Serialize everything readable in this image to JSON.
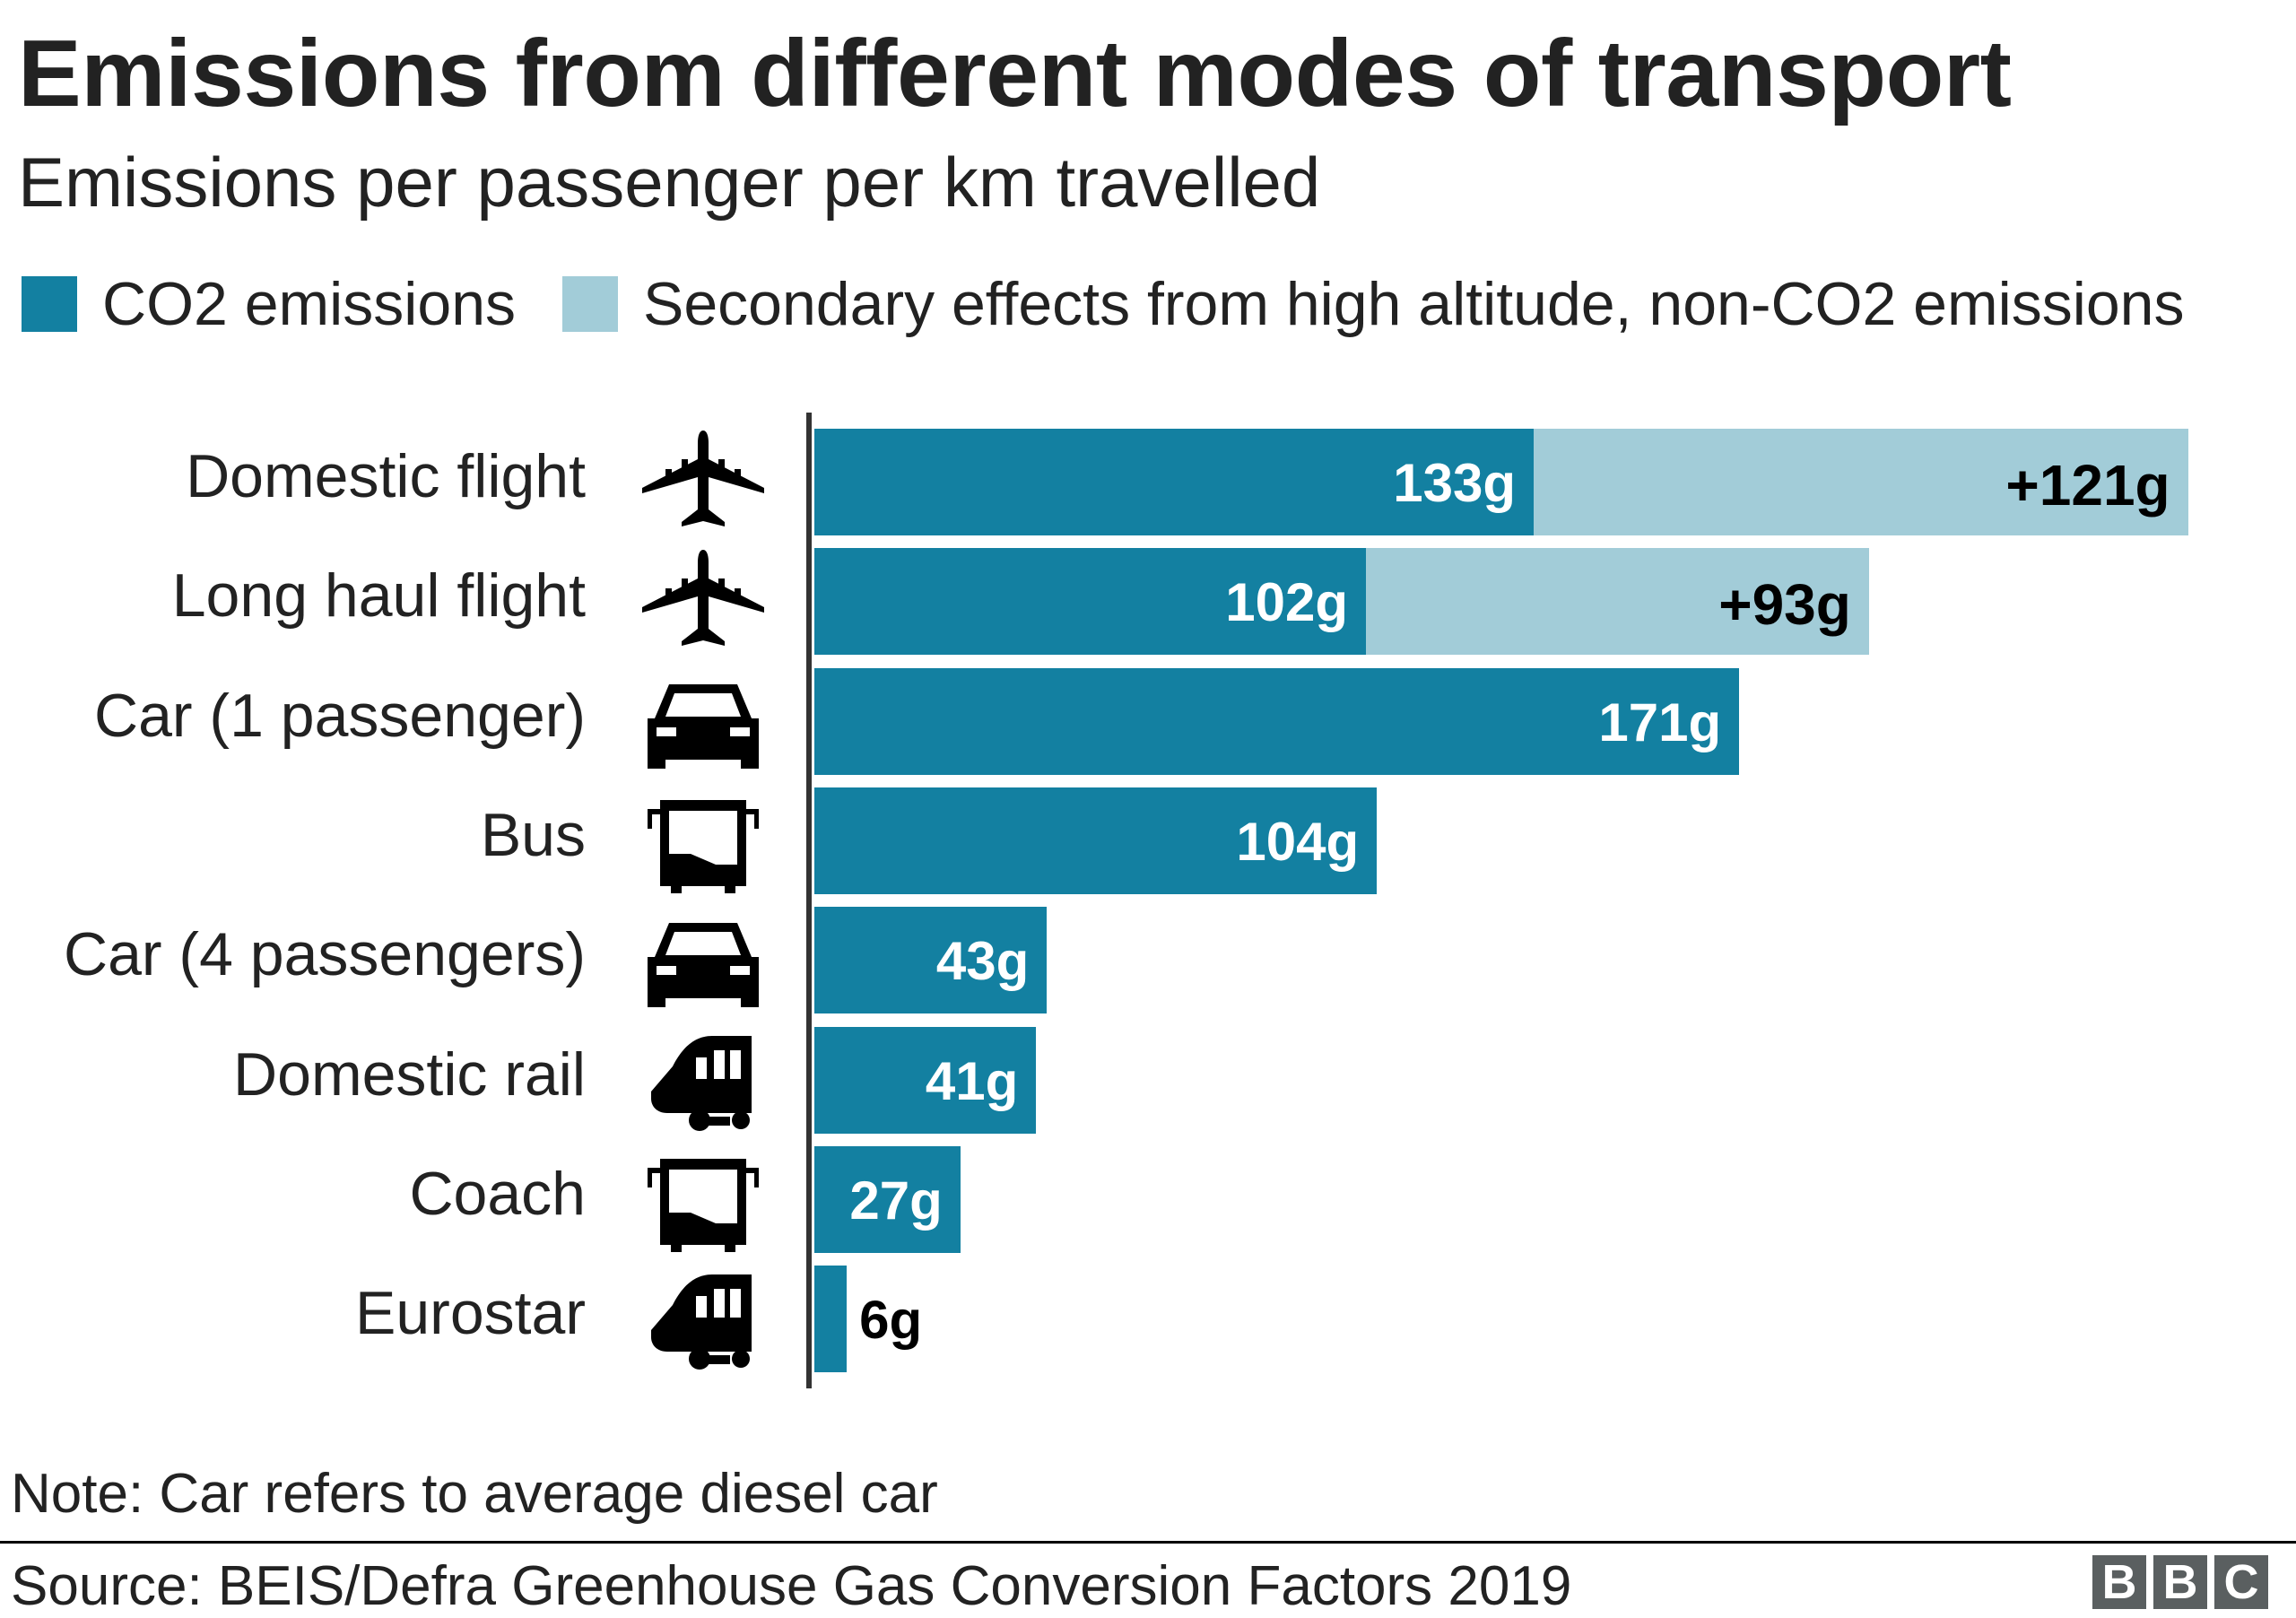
{
  "title": "Emissions from different modes of transport",
  "subtitle": "Emissions per passenger per km travelled",
  "colors": {
    "co2": "#1380a1",
    "secondary": "#a2ccd8",
    "text": "#222222"
  },
  "chart_data": {
    "type": "bar",
    "orientation": "horizontal",
    "stacked": true,
    "unit": "g",
    "legend": [
      {
        "name": "CO2 emissions",
        "color": "#1380a1"
      },
      {
        "name": "Secondary effects from high altitude, non-CO2 emissions",
        "color": "#a2ccd8"
      }
    ],
    "legend_placement": "top",
    "grid": false,
    "categories": [
      "Domestic flight",
      "Long haul flight",
      "Car (1 passenger)",
      "Bus",
      "Car (4 passengers)",
      "Domestic rail",
      "Coach",
      "Eurostar"
    ],
    "icons": [
      "plane-icon",
      "plane-icon",
      "car-icon",
      "bus-icon",
      "car-icon",
      "train-icon",
      "bus-icon",
      "train-icon"
    ],
    "series": [
      {
        "name": "CO2 emissions",
        "values": [
          133,
          102,
          171,
          104,
          43,
          41,
          27,
          6
        ],
        "labels": [
          "133g",
          "102g",
          "171g",
          "104g",
          "43g",
          "41g",
          "27g",
          "6g"
        ]
      },
      {
        "name": "Secondary effects from high altitude, non-CO2 emissions",
        "values": [
          121,
          93,
          0,
          0,
          0,
          0,
          0,
          0
        ],
        "labels": [
          "+121g",
          "+93g",
          "",
          "",
          "",
          "",
          "",
          ""
        ]
      }
    ]
  },
  "note": "Note: Car refers to average diesel car",
  "source": "Source: BEIS/Defra Greenhouse Gas Conversion Factors 2019",
  "logo": "BBC"
}
